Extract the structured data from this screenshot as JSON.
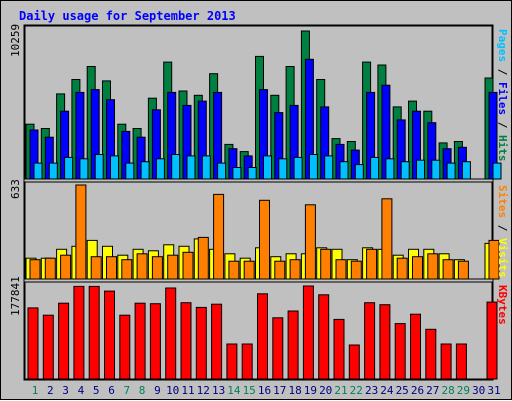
{
  "title": "Daily usage for September 2013",
  "colors": {
    "background": "#c0c0c0",
    "hits": "#008040",
    "files": "#0000ff",
    "pages": "#00c0ff",
    "visits": "#ffff00",
    "sites": "#ff8000",
    "kbytes": "#ff0000",
    "weekend_label": "#00805c",
    "weekday_label": "#000080"
  },
  "chart_data": [
    {
      "type": "bar",
      "name": "hits-files-pages",
      "ymax": 10259,
      "max_label": "10259",
      "right_labels": [
        {
          "text": "Pages",
          "color_key": "pages"
        },
        {
          "text": " / ",
          "color_key": "sep"
        },
        {
          "text": "Files",
          "color_key": "files"
        },
        {
          "text": " / ",
          "color_key": "sep"
        },
        {
          "text": "Hits",
          "color_key": "hits"
        }
      ],
      "categories": [
        "1",
        "2",
        "3",
        "4",
        "5",
        "6",
        "7",
        "8",
        "9",
        "10",
        "11",
        "12",
        "13",
        "14",
        "15",
        "16",
        "17",
        "18",
        "19",
        "20",
        "21",
        "22",
        "23",
        "24",
        "25",
        "26",
        "27",
        "28",
        "29",
        "30",
        "31"
      ],
      "series": [
        {
          "name": "Hits",
          "color_key": "hits",
          "values": [
            3800,
            3500,
            5900,
            6900,
            7800,
            6800,
            3800,
            3500,
            5600,
            8100,
            6100,
            5800,
            7300,
            2400,
            1900,
            8500,
            5800,
            7800,
            10259,
            6900,
            2800,
            2600,
            8100,
            7900,
            5000,
            5400,
            4700,
            2500,
            2600,
            0,
            7000
          ]
        },
        {
          "name": "Files",
          "color_key": "files",
          "values": [
            3400,
            2900,
            4700,
            6000,
            6200,
            5500,
            3300,
            2900,
            4800,
            6000,
            5100,
            5400,
            6000,
            2100,
            1600,
            6200,
            4600,
            5100,
            8300,
            5000,
            2400,
            2000,
            6000,
            6500,
            4100,
            4700,
            3900,
            2100,
            2200,
            0,
            6000
          ]
        },
        {
          "name": "Pages",
          "color_key": "pages",
          "values": [
            1100,
            1100,
            1500,
            1400,
            1700,
            1600,
            1100,
            1200,
            1400,
            1700,
            1600,
            1600,
            1100,
            800,
            800,
            1600,
            1400,
            1500,
            1700,
            1600,
            1200,
            1000,
            1500,
            1400,
            1200,
            1300,
            1300,
            1100,
            1200,
            0,
            1100
          ]
        }
      ]
    },
    {
      "type": "bar",
      "name": "visits-sites",
      "ymax": 633,
      "max_label": "633",
      "right_labels": [
        {
          "text": "Sites",
          "color_key": "sites"
        },
        {
          "text": " / ",
          "color_key": "sep"
        },
        {
          "text": "Visits",
          "color_key": "visits"
        }
      ],
      "categories": [
        "1",
        "2",
        "3",
        "4",
        "5",
        "6",
        "7",
        "8",
        "9",
        "10",
        "11",
        "12",
        "13",
        "14",
        "15",
        "16",
        "17",
        "18",
        "19",
        "20",
        "21",
        "22",
        "23",
        "24",
        "25",
        "26",
        "27",
        "28",
        "29",
        "30",
        "31"
      ],
      "series": [
        {
          "name": "Visits",
          "color_key": "visits",
          "values": [
            140,
            140,
            200,
            220,
            260,
            220,
            160,
            200,
            190,
            230,
            220,
            270,
            200,
            170,
            140,
            210,
            150,
            170,
            170,
            210,
            200,
            130,
            210,
            200,
            160,
            200,
            200,
            170,
            130,
            0,
            240
          ]
        },
        {
          "name": "Sites",
          "color_key": "sites",
          "values": [
            130,
            140,
            160,
            633,
            150,
            150,
            130,
            170,
            150,
            160,
            180,
            280,
            570,
            120,
            120,
            530,
            120,
            130,
            500,
            200,
            130,
            120,
            200,
            540,
            140,
            150,
            170,
            130,
            120,
            0,
            260
          ]
        }
      ]
    },
    {
      "type": "bar",
      "name": "kbytes",
      "ymax": 177841,
      "max_label": "177841",
      "right_labels": [
        {
          "text": "KBytes",
          "color_key": "kbytes"
        }
      ],
      "categories": [
        "1",
        "2",
        "3",
        "4",
        "5",
        "6",
        "7",
        "8",
        "9",
        "10",
        "11",
        "12",
        "13",
        "14",
        "15",
        "16",
        "17",
        "18",
        "19",
        "20",
        "21",
        "22",
        "23",
        "24",
        "25",
        "26",
        "27",
        "28",
        "29",
        "30",
        "31"
      ],
      "series": [
        {
          "name": "KBytes",
          "color_key": "kbytes",
          "values": [
            136000,
            122000,
            145000,
            177000,
            177000,
            168000,
            122000,
            145000,
            144000,
            174000,
            146000,
            137000,
            143000,
            67000,
            67000,
            163000,
            117000,
            130000,
            177841,
            161000,
            114000,
            65000,
            146000,
            142000,
            106000,
            124000,
            95000,
            67000,
            67000,
            0,
            147000
          ]
        }
      ]
    }
  ]
}
